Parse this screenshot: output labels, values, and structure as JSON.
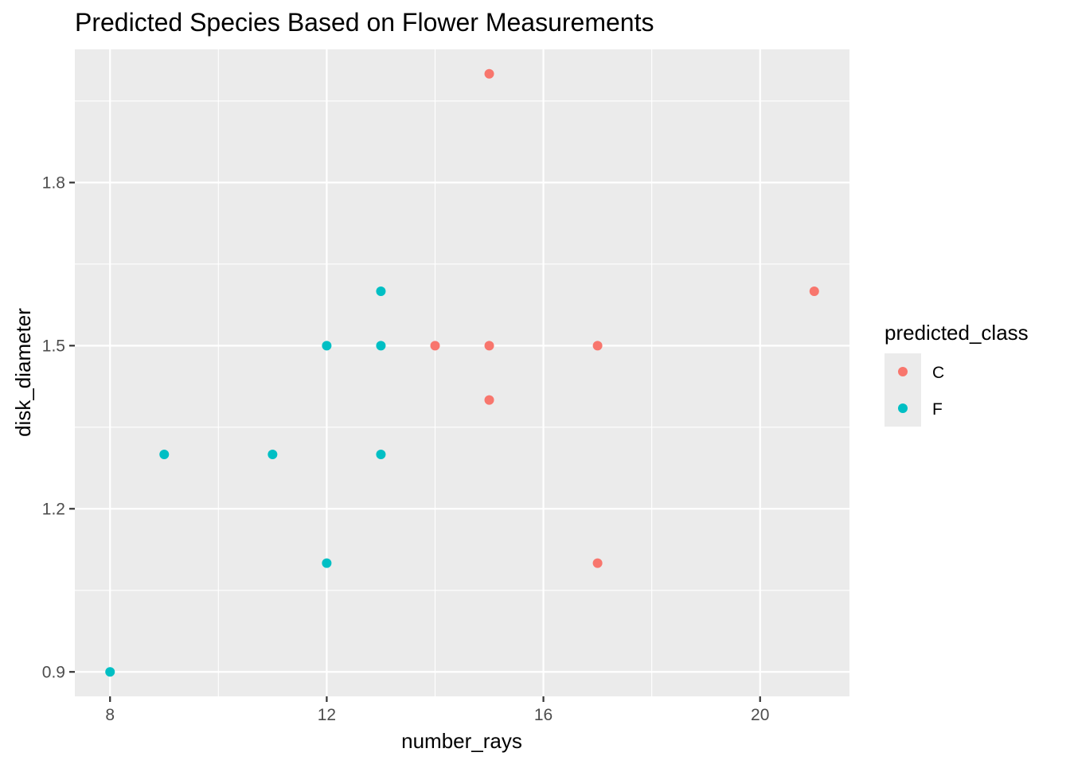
{
  "chart_data": {
    "type": "scatter",
    "title": "Predicted Species Based on Flower Measurements",
    "xlabel": "number_rays",
    "ylabel": "disk_diameter",
    "xlim": [
      7.35,
      21.65
    ],
    "ylim": [
      0.855,
      2.045
    ],
    "x_ticks": [
      8,
      12,
      16,
      20
    ],
    "x_tick_labels": [
      "8",
      "12",
      "16",
      "20"
    ],
    "y_ticks": [
      0.9,
      1.2,
      1.5,
      1.8
    ],
    "y_tick_labels": [
      "0.9",
      "1.2",
      "1.5",
      "1.8"
    ],
    "grid": true,
    "legend": {
      "title": "predicted_class",
      "position": "right"
    },
    "series": [
      {
        "name": "C",
        "color": "#F8766D",
        "points": [
          [
            15,
            2.0
          ],
          [
            21,
            1.6
          ],
          [
            14,
            1.5
          ],
          [
            15,
            1.5
          ],
          [
            17,
            1.5
          ],
          [
            15,
            1.4
          ],
          [
            17,
            1.1
          ]
        ]
      },
      {
        "name": "F",
        "color": "#00BFC4",
        "points": [
          [
            13,
            1.6
          ],
          [
            12,
            1.5
          ],
          [
            13,
            1.5
          ],
          [
            9,
            1.3
          ],
          [
            11,
            1.3
          ],
          [
            13,
            1.3
          ],
          [
            12,
            1.1
          ],
          [
            8,
            0.9
          ]
        ]
      }
    ]
  }
}
